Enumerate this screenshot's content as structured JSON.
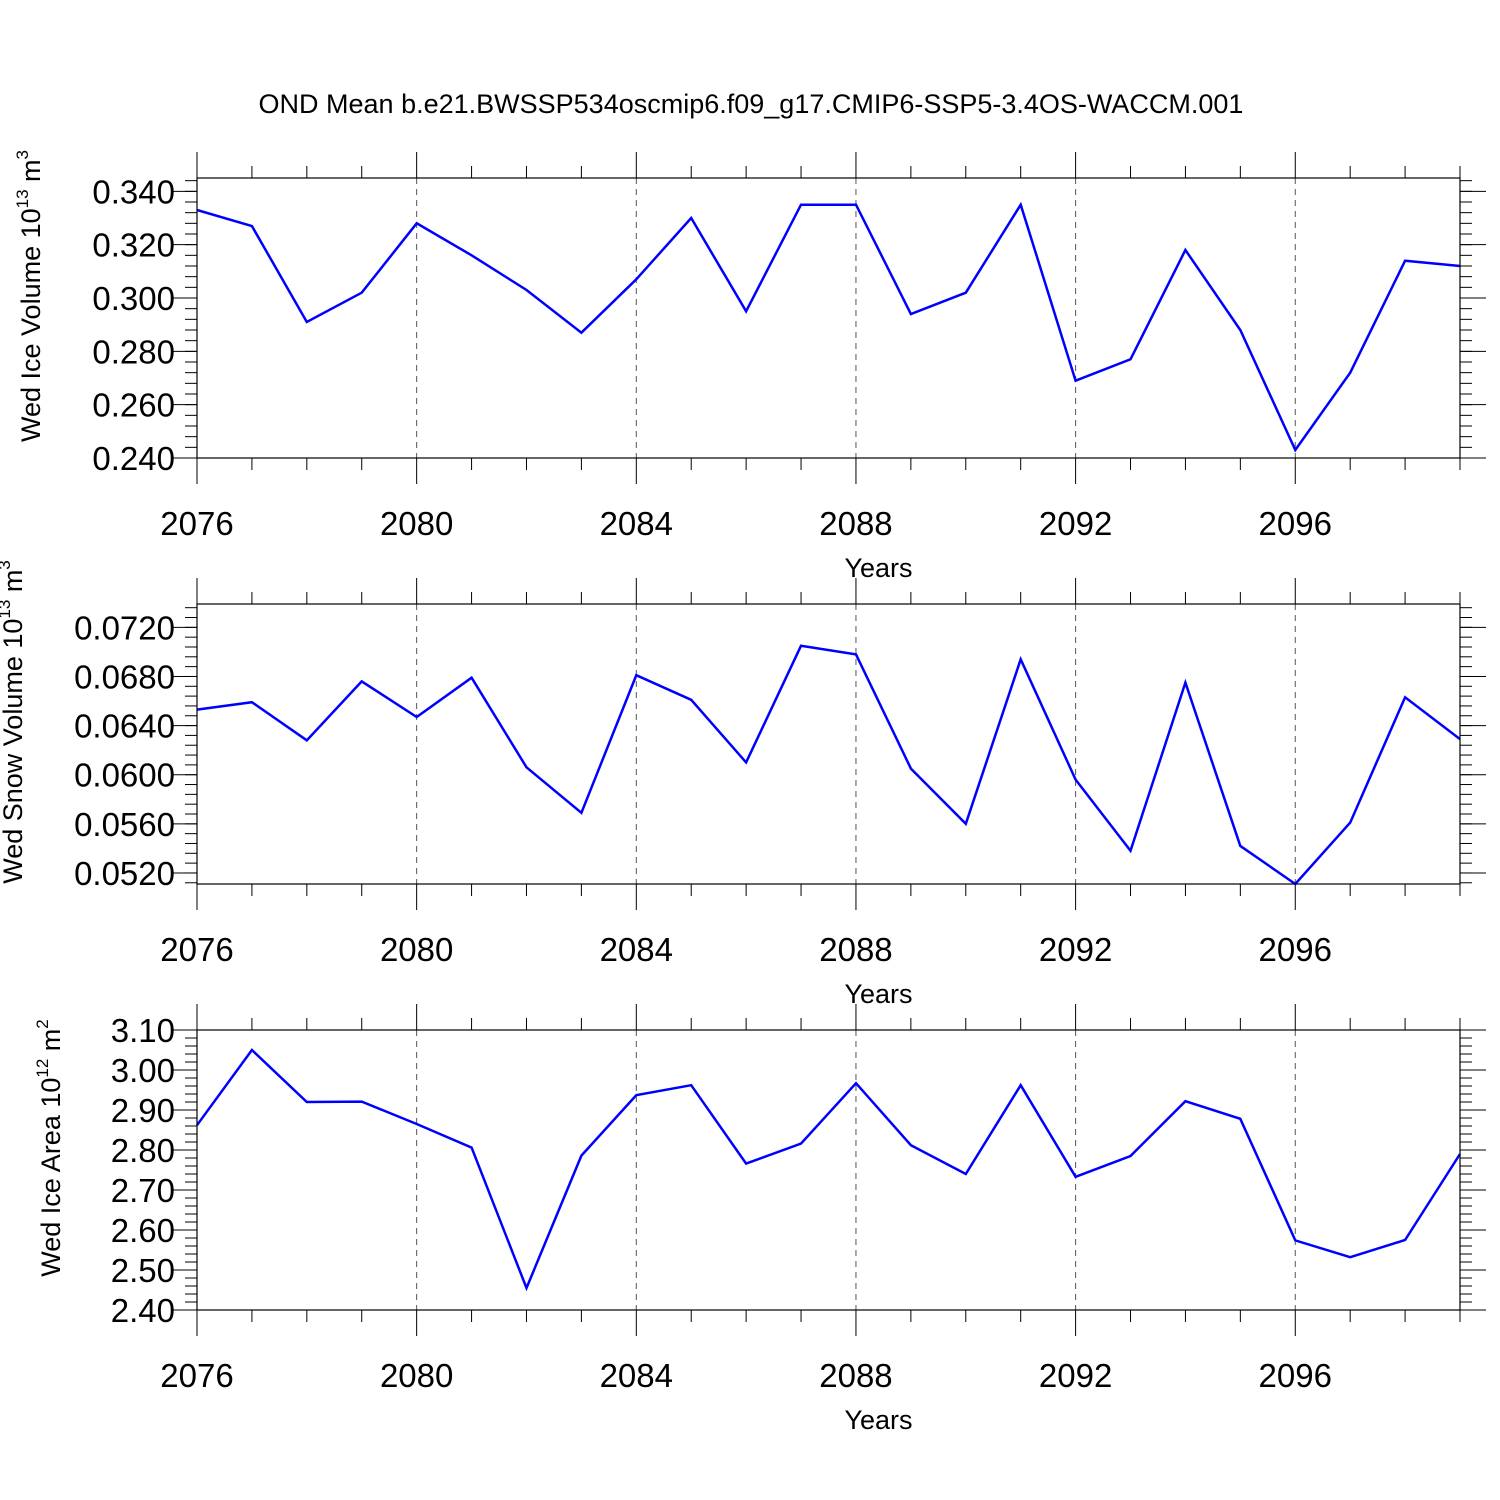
{
  "title": "OND Mean b.e21.BWSSP534oscmip6.f09_g17.CMIP6-SSP5-3.4OS-WACCM.001",
  "colors": {
    "line": "#0000ff",
    "frame": "#000000",
    "grid": "#555555"
  },
  "chart_data": [
    {
      "type": "line",
      "ylabel": "Wed Ice Volume 10",
      "ylabel_exp": "13",
      "ylabel_unit": " m",
      "ylabel_unit_exp": "3",
      "xlabel": "Years",
      "xlim": [
        2076,
        2099
      ],
      "ylim": [
        0.24,
        0.345
      ],
      "yticks": [
        0.24,
        0.26,
        0.28,
        0.3,
        0.32,
        0.34
      ],
      "ytick_labels": [
        "0.240",
        "0.260",
        "0.280",
        "0.300",
        "0.320",
        "0.340"
      ],
      "yminor_step": 0.004,
      "xticks": [
        2076,
        2080,
        2084,
        2088,
        2092,
        2096
      ],
      "xtick_labels": [
        "2076",
        "2080",
        "2084",
        "2088",
        "2092",
        "2096"
      ],
      "grid_x": true,
      "x": [
        2076,
        2077,
        2078,
        2079,
        2080,
        2081,
        2082,
        2083,
        2084,
        2085,
        2086,
        2087,
        2088,
        2089,
        2090,
        2091,
        2092,
        2093,
        2094,
        2095,
        2096,
        2097,
        2098,
        2099
      ],
      "series": [
        {
          "values": [
            0.333,
            0.327,
            0.291,
            0.302,
            0.328,
            0.316,
            0.303,
            0.287,
            0.307,
            0.33,
            0.295,
            0.335,
            0.335,
            0.294,
            0.302,
            0.335,
            0.269,
            0.277,
            0.318,
            0.288,
            0.243,
            0.272,
            0.314,
            0.312
          ]
        }
      ]
    },
    {
      "type": "line",
      "ylabel": "Wed Snow Volume 10",
      "ylabel_exp": "13",
      "ylabel_unit": " m",
      "ylabel_unit_exp": "3",
      "xlabel": "Years",
      "xlim": [
        2076,
        2099
      ],
      "ylim": [
        0.0511,
        0.0739
      ],
      "yticks": [
        0.052,
        0.056,
        0.06,
        0.064,
        0.068,
        0.072
      ],
      "ytick_labels": [
        "0.0520",
        "0.0560",
        "0.0600",
        "0.0640",
        "0.0680",
        "0.0720"
      ],
      "yminor_step": 0.0008,
      "xticks": [
        2076,
        2080,
        2084,
        2088,
        2092,
        2096
      ],
      "xtick_labels": [
        "2076",
        "2080",
        "2084",
        "2088",
        "2092",
        "2096"
      ],
      "grid_x": true,
      "x": [
        2076,
        2077,
        2078,
        2079,
        2080,
        2081,
        2082,
        2083,
        2084,
        2085,
        2086,
        2087,
        2088,
        2089,
        2090,
        2091,
        2092,
        2093,
        2094,
        2095,
        2096,
        2097,
        2098,
        2099
      ],
      "series": [
        {
          "values": [
            0.0653,
            0.0659,
            0.0628,
            0.0676,
            0.0647,
            0.0679,
            0.0606,
            0.0569,
            0.0681,
            0.0661,
            0.061,
            0.0705,
            0.0698,
            0.0605,
            0.056,
            0.0694,
            0.0596,
            0.0538,
            0.0675,
            0.0542,
            0.0511,
            0.0561,
            0.0663,
            0.0629
          ]
        }
      ]
    },
    {
      "type": "line",
      "ylabel": "Wed Ice Area 10",
      "ylabel_exp": "12",
      "ylabel_unit": " m",
      "ylabel_unit_exp": "2",
      "xlabel": "Years",
      "xlim": [
        2076,
        2099
      ],
      "ylim": [
        2.4,
        3.1
      ],
      "yticks": [
        2.4,
        2.5,
        2.6,
        2.7,
        2.8,
        2.9,
        3.0,
        3.1
      ],
      "ytick_labels": [
        "2.40",
        "2.50",
        "2.60",
        "2.70",
        "2.80",
        "2.90",
        "3.00",
        "3.10"
      ],
      "yminor_step": 0.02,
      "xticks": [
        2076,
        2080,
        2084,
        2088,
        2092,
        2096
      ],
      "xtick_labels": [
        "2076",
        "2080",
        "2084",
        "2088",
        "2092",
        "2096"
      ],
      "grid_x": true,
      "x": [
        2076,
        2077,
        2078,
        2079,
        2080,
        2081,
        2082,
        2083,
        2084,
        2085,
        2086,
        2087,
        2088,
        2089,
        2090,
        2091,
        2092,
        2093,
        2094,
        2095,
        2096,
        2097,
        2098,
        2099
      ],
      "series": [
        {
          "values": [
            2.862,
            3.05,
            2.92,
            2.921,
            2.865,
            2.806,
            2.455,
            2.786,
            2.937,
            2.962,
            2.766,
            2.816,
            2.967,
            2.812,
            2.74,
            2.962,
            2.733,
            2.785,
            2.922,
            2.878,
            2.574,
            2.532,
            2.575,
            2.79
          ]
        }
      ]
    }
  ]
}
